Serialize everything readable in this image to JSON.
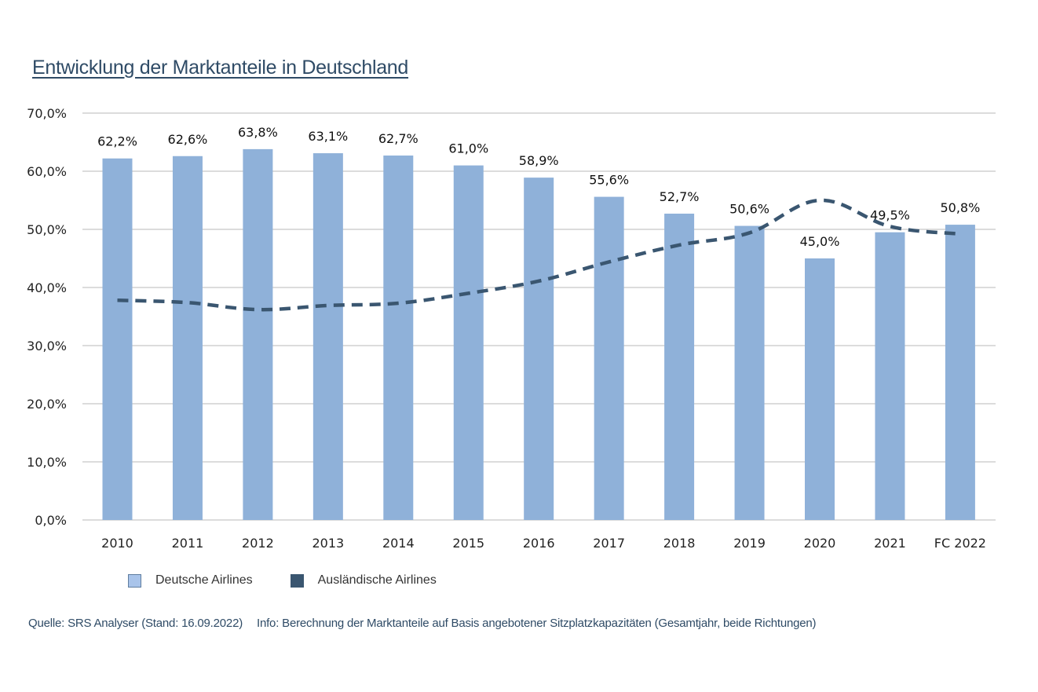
{
  "title": "Entwicklung der Marktanteile in Deutschland",
  "legend": {
    "deutsche": "Deutsche Airlines",
    "auslaendische": "Ausländische Airlines"
  },
  "source": {
    "quelle": "Quelle: SRS Analyser (Stand: 16.09.2022)",
    "info": "Info: Berechnung der Marktanteile auf Basis angebotener Sitzplatzkapazitäten (Gesamtjahr, beide Richtungen)"
  },
  "colors": {
    "bar": "#8fb1d9",
    "line": "#3a5670",
    "grid": "#c8c8c8",
    "title": "#2f4b66"
  },
  "chart_data": {
    "type": "bar",
    "categories": [
      "2010",
      "2011",
      "2012",
      "2013",
      "2014",
      "2015",
      "2016",
      "2017",
      "2018",
      "2019",
      "2020",
      "2021",
      "FC 2022"
    ],
    "ylim": [
      0,
      70
    ],
    "yticks": [
      "0,0%",
      "10,0%",
      "20,0%",
      "30,0%",
      "40,0%",
      "50,0%",
      "60,0%",
      "70,0%"
    ],
    "grid": true,
    "legend_position": "bottom-left",
    "series": [
      {
        "name": "Deutsche Airlines",
        "type": "bar",
        "values": [
          62.2,
          62.6,
          63.8,
          63.1,
          62.7,
          61.0,
          58.9,
          55.6,
          52.7,
          50.6,
          45.0,
          49.5,
          50.8
        ],
        "labels": [
          "62,2%",
          "62,6%",
          "63,8%",
          "63,1%",
          "62,7%",
          "61,0%",
          "58,9%",
          "55,6%",
          "52,7%",
          "50,6%",
          "45,0%",
          "49,5%",
          "50,8%"
        ]
      },
      {
        "name": "Ausländische Airlines",
        "type": "line",
        "style": "dashed",
        "values": [
          37.8,
          37.4,
          36.2,
          36.9,
          37.3,
          39.0,
          41.1,
          44.4,
          47.3,
          49.4,
          55.0,
          50.5,
          49.2
        ]
      }
    ]
  }
}
